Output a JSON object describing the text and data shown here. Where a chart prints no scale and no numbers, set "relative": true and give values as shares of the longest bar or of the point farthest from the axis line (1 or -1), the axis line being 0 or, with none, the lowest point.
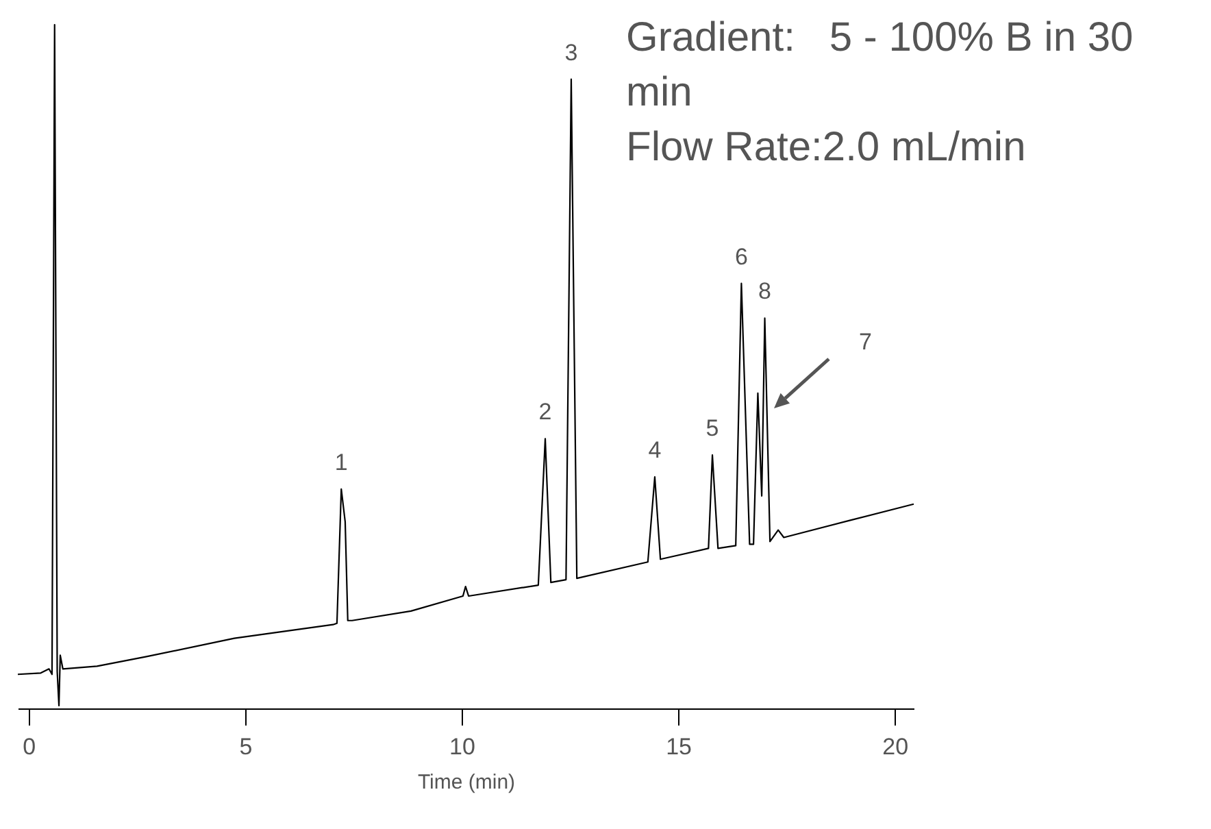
{
  "chart_data": {
    "type": "line",
    "relative": true,
    "xlabel": "Time (min)",
    "xlim": [
      -0.25,
      20.44
    ],
    "xticks": [
      0,
      5,
      10,
      15,
      20
    ],
    "x": [
      -0.25,
      0.28,
      0.47,
      0.54,
      0.6,
      0.66,
      0.7,
      0.73,
      0.79,
      1.58,
      2.72,
      4.75,
      5.66,
      7.03,
      7.12,
      7.22,
      7.31,
      7.37,
      7.47,
      8.83,
      10.03,
      10.09,
      10.16,
      11.77,
      11.93,
      12.06,
      12.41,
      12.53,
      12.66,
      14.3,
      14.46,
      14.59,
      15.7,
      15.79,
      15.92,
      16.33,
      16.46,
      16.65,
      16.74,
      16.84,
      16.93,
      17.0,
      17.12,
      17.31,
      17.44,
      18.96,
      20.44
    ],
    "series": [
      {
        "color": "#000000",
        "values": [
          0.046,
          0.048,
          0.054,
          0.046,
          1.0,
          0.05,
          0,
          0.074,
          0.054,
          0.058,
          0.072,
          0.099,
          0.107,
          0.119,
          0.121,
          0.318,
          0.27,
          0.125,
          0.125,
          0.139,
          0.161,
          0.175,
          0.161,
          0.177,
          0.392,
          0.181,
          0.185,
          0.92,
          0.187,
          0.211,
          0.336,
          0.215,
          0.231,
          0.368,
          0.231,
          0.235,
          0.62,
          0.237,
          0.237,
          0.459,
          0.308,
          0.569,
          0.241,
          0.258,
          0.247,
          0.272,
          0.296
        ]
      }
    ],
    "annotations": [
      "Gradient:   5 - 100% B in 30 min",
      "Flow Rate:2.0 mL/min",
      {
        "text": "1",
        "x": 7.22,
        "y": 0.318
      },
      {
        "text": "2",
        "x": 11.93,
        "y": 0.392
      },
      {
        "text": "3",
        "x": 12.53,
        "y": 0.92
      },
      {
        "text": "4",
        "x": 14.46,
        "y": 0.336
      },
      {
        "text": "5",
        "x": 15.79,
        "y": 0.368
      },
      {
        "text": "6",
        "x": 16.46,
        "y": 0.62
      },
      {
        "text": "8",
        "x": 17.0,
        "y": 0.569
      },
      "7"
    ]
  }
}
